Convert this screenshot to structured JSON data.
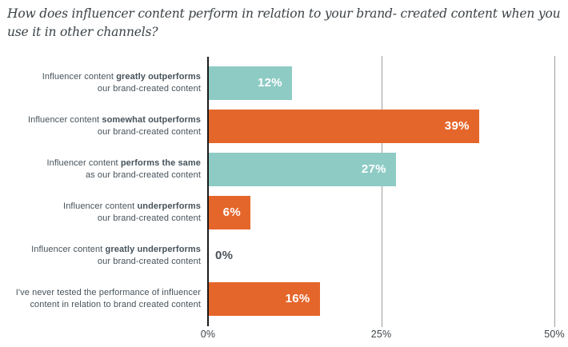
{
  "title": "How does influencer content perform in relation to your brand- created content when you use it in other channels?",
  "colors": {
    "teal": "#8ecbc5",
    "orange": "#e5662b",
    "title_text": "#3b4247",
    "label_text": "#46525a",
    "value_inside_text": "#ffffff",
    "value_outside_text": "#4a5057",
    "axis_line": "#1b1b19",
    "gridline": "#9d9d9d",
    "tick_text": "#3f4448"
  },
  "chart_data": {
    "type": "bar",
    "orientation": "horizontal",
    "title": "How does influencer content perform in relation to your brand- created content when you use it in other channels?",
    "categories": [
      {
        "line1_regular": "Influencer content ",
        "line1_bold": "greatly outperforms",
        "line2": "our brand-created content"
      },
      {
        "line1_regular": "Influencer content ",
        "line1_bold": "somewhat outperforms",
        "line2": "our brand-created content"
      },
      {
        "line1_regular": "Influencer content ",
        "line1_bold": "performs the same",
        "line2": "as our brand-created content"
      },
      {
        "line1_regular": "Influencer content ",
        "line1_bold": "underperforms",
        "line2": "our brand-created content"
      },
      {
        "line1_regular": "Influencer content ",
        "line1_bold": "greatly underperforms",
        "line2": "our brand-created content"
      },
      {
        "line1_regular": "I've never tested the performance of influencer",
        "line1_bold": "",
        "line2": "content in relation to brand created content"
      }
    ],
    "values": [
      12,
      39,
      27,
      6,
      0,
      16
    ],
    "value_labels": [
      "12%",
      "39%",
      "27%",
      "6%",
      "0%",
      "16%"
    ],
    "bar_colors": [
      "teal",
      "orange",
      "teal",
      "orange",
      "none",
      "orange"
    ],
    "x_ticks": {
      "labels": [
        "0%",
        "25%",
        "50%"
      ],
      "values": [
        0,
        25,
        50
      ]
    },
    "xlim": [
      0,
      50
    ],
    "xlabel": "",
    "ylabel": "",
    "grid": "vertical-gridlines-at-ticks",
    "legend": "none"
  }
}
